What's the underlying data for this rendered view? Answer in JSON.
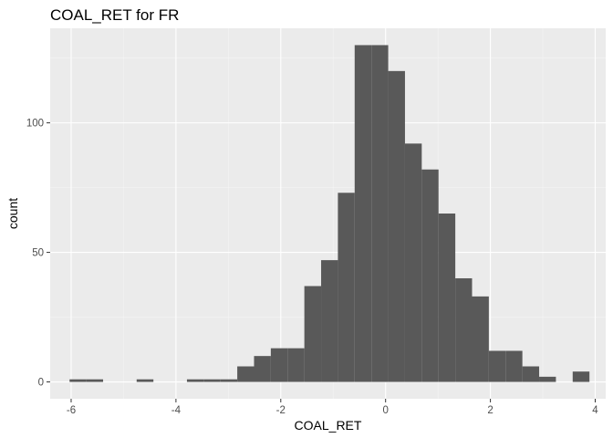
{
  "colors": {
    "panel_background": "#ebebeb",
    "major_grid": "#ffffff",
    "minor_grid": "#f5f5f5",
    "bar_fill": "#595959",
    "tick_text": "#4d4d4d",
    "tick_mark": "#333333",
    "text": "#000000"
  },
  "chart_data": {
    "type": "bar",
    "subtype": "histogram",
    "title": "COAL_RET  for FR",
    "xlabel": "COAL_RET",
    "ylabel": "count",
    "xlim": [
      -6.4,
      4.2
    ],
    "ylim": [
      -6.5,
      136.5
    ],
    "x_ticks": [
      -6,
      -4,
      -2,
      0,
      2,
      4
    ],
    "x_tick_labels": [
      "-6",
      "-4",
      "-2",
      "0",
      "2",
      "4"
    ],
    "y_ticks": [
      0,
      50,
      100
    ],
    "y_tick_labels": [
      "0",
      "50",
      "100"
    ],
    "grid": true,
    "legend": "none",
    "bin_width": 0.32,
    "bins": [
      {
        "x0": -6.03,
        "x1": -5.71,
        "count": 1
      },
      {
        "x0": -5.71,
        "x1": -5.39,
        "count": 1
      },
      {
        "x0": -5.39,
        "x1": -5.07,
        "count": 0
      },
      {
        "x0": -5.07,
        "x1": -4.75,
        "count": 0
      },
      {
        "x0": -4.75,
        "x1": -4.43,
        "count": 1
      },
      {
        "x0": -4.43,
        "x1": -4.11,
        "count": 0
      },
      {
        "x0": -4.11,
        "x1": -3.79,
        "count": 0
      },
      {
        "x0": -3.79,
        "x1": -3.47,
        "count": 1
      },
      {
        "x0": -3.47,
        "x1": -3.15,
        "count": 1
      },
      {
        "x0": -3.15,
        "x1": -2.83,
        "count": 1
      },
      {
        "x0": -2.83,
        "x1": -2.51,
        "count": 6
      },
      {
        "x0": -2.51,
        "x1": -2.19,
        "count": 10
      },
      {
        "x0": -2.19,
        "x1": -1.87,
        "count": 13
      },
      {
        "x0": -1.87,
        "x1": -1.55,
        "count": 13
      },
      {
        "x0": -1.55,
        "x1": -1.23,
        "count": 37
      },
      {
        "x0": -1.23,
        "x1": -0.91,
        "count": 47
      },
      {
        "x0": -0.91,
        "x1": -0.59,
        "count": 73
      },
      {
        "x0": -0.59,
        "x1": -0.27,
        "count": 130
      },
      {
        "x0": -0.27,
        "x1": 0.05,
        "count": 130
      },
      {
        "x0": 0.05,
        "x1": 0.37,
        "count": 120
      },
      {
        "x0": 0.37,
        "x1": 0.69,
        "count": 92
      },
      {
        "x0": 0.69,
        "x1": 1.01,
        "count": 82
      },
      {
        "x0": 1.01,
        "x1": 1.33,
        "count": 65
      },
      {
        "x0": 1.33,
        "x1": 1.65,
        "count": 40
      },
      {
        "x0": 1.65,
        "x1": 1.97,
        "count": 33
      },
      {
        "x0": 1.97,
        "x1": 2.29,
        "count": 12
      },
      {
        "x0": 2.29,
        "x1": 2.61,
        "count": 12
      },
      {
        "x0": 2.61,
        "x1": 2.93,
        "count": 6
      },
      {
        "x0": 2.93,
        "x1": 3.25,
        "count": 2
      },
      {
        "x0": 3.25,
        "x1": 3.57,
        "count": 0
      },
      {
        "x0": 3.57,
        "x1": 3.89,
        "count": 4
      }
    ]
  }
}
